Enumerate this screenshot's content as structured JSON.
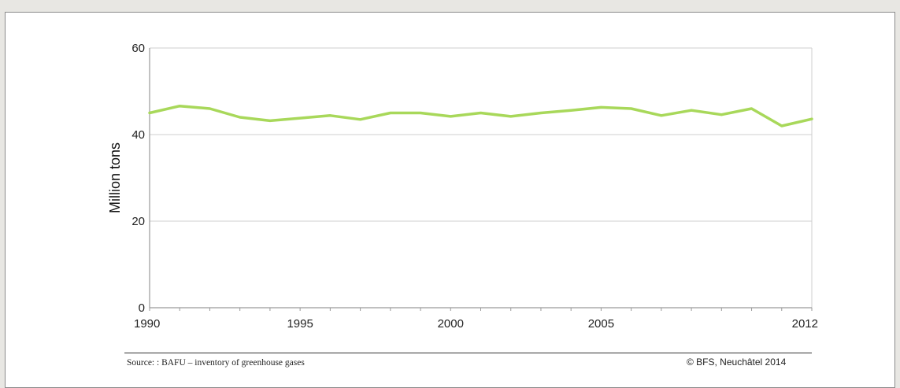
{
  "chart_data": {
    "type": "line",
    "ylabel": "Million tons",
    "xlabel": "",
    "ylim": [
      0,
      60
    ],
    "xlim": [
      1990,
      2012
    ],
    "y_ticks": [
      "0",
      "20",
      "40",
      "60"
    ],
    "y_tick_values": [
      0,
      20,
      40,
      60
    ],
    "x_ticks": [
      "1990",
      "1995",
      "2000",
      "2005",
      "2012"
    ],
    "x_tick_values": [
      1990,
      1995,
      2000,
      2005,
      2012
    ],
    "grid": "horizontal",
    "series": [
      {
        "color": "#a8d85a",
        "x": [
          1990,
          1991,
          1992,
          1993,
          1994,
          1995,
          1996,
          1997,
          1998,
          1999,
          2000,
          2001,
          2002,
          2003,
          2004,
          2005,
          2006,
          2007,
          2008,
          2009,
          2010,
          2011,
          2012
        ],
        "values": [
          45.0,
          46.6,
          46.0,
          44.0,
          43.2,
          43.8,
          44.4,
          43.5,
          45.0,
          45.0,
          44.2,
          45.0,
          44.2,
          45.0,
          45.6,
          46.3,
          46.0,
          44.4,
          45.6,
          44.6,
          46.0,
          42.0,
          43.6
        ]
      }
    ]
  },
  "footer": {
    "source": "Source: : BAFU – inventory of greenhouse gases",
    "credit": "© BFS, Neuchâtel 2014"
  }
}
